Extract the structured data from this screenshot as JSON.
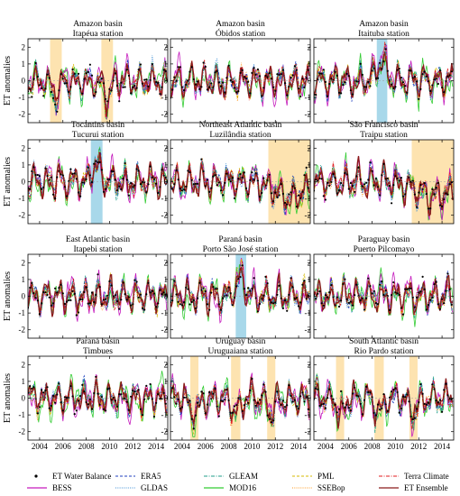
{
  "chart_data": {
    "type": "line",
    "ylabel": "ET anomalies",
    "xlim": [
      2003,
      2015
    ],
    "ylim": [
      -2.5,
      2.5
    ],
    "x_ticks": [
      2004,
      2006,
      2008,
      2010,
      2012,
      2014
    ],
    "y_ticks": [
      -2,
      -1,
      0,
      1,
      2
    ],
    "panels": [
      {
        "title1": "Amazon basin",
        "title2": "Itapéua station",
        "shade": [
          {
            "from": 2004.9,
            "to": 2005.9,
            "color": "#fde3b0"
          },
          {
            "from": 2009.3,
            "to": 2010.3,
            "color": "#fde3b0"
          }
        ]
      },
      {
        "title1": "Amazon basin",
        "title2": "Óbidos station",
        "shade": []
      },
      {
        "title1": "Amazon basin",
        "title2": "Itaituba station",
        "shade": [
          {
            "from": 2008.4,
            "to": 2009.3,
            "color": "#a8d8ea"
          }
        ]
      },
      {
        "title1": "Tocantins basin",
        "title2": "Tucurui station",
        "shade": [
          {
            "from": 2008.4,
            "to": 2009.4,
            "color": "#a8d8ea"
          }
        ]
      },
      {
        "title1": "Northeast Atlantic basin",
        "title2": "Luzilândia station",
        "shade": [
          {
            "from": 2011.4,
            "to": 2015.0,
            "color": "#fde3b0"
          }
        ]
      },
      {
        "title1": "São Francisco basin",
        "title2": "Traipu station",
        "shade": [
          {
            "from": 2011.4,
            "to": 2015.0,
            "color": "#fde3b0"
          }
        ]
      },
      {
        "title1": "East Atlantic basin",
        "title2": "Itapebi station",
        "shade": []
      },
      {
        "title1": "Paraná basin",
        "title2": "Porto São José station",
        "shade": [
          {
            "from": 2008.6,
            "to": 2009.5,
            "color": "#a8d8ea"
          }
        ]
      },
      {
        "title1": "Paraguay basin",
        "title2": "Puerto Pilcomayo",
        "shade": []
      },
      {
        "title1": "Paraná basin",
        "title2": "Timbues",
        "shade": []
      },
      {
        "title1": "Uruguay basin",
        "title2": "Uruguaiana station",
        "shade": [
          {
            "from": 2004.7,
            "to": 2005.4,
            "color": "#fde3b0"
          },
          {
            "from": 2008.2,
            "to": 2009.0,
            "color": "#fde3b0"
          },
          {
            "from": 2011.3,
            "to": 2012.0,
            "color": "#fde3b0"
          }
        ]
      },
      {
        "title1": "South Atlantic basin",
        "title2": "Rio Pardo station",
        "shade": [
          {
            "from": 2004.9,
            "to": 2005.6,
            "color": "#fde3b0"
          },
          {
            "from": 2008.2,
            "to": 2009.0,
            "color": "#fde3b0"
          },
          {
            "from": 2011.2,
            "to": 2011.9,
            "color": "#fde3b0"
          }
        ]
      }
    ],
    "series": [
      {
        "name": "ET Water Balance",
        "color": "#000000",
        "style": "dots"
      },
      {
        "name": "ERA5",
        "color": "#1f3fbf",
        "style": "dash"
      },
      {
        "name": "GLEAM",
        "color": "#1f9e89",
        "style": "dashdot"
      },
      {
        "name": "PML",
        "color": "#d4b800",
        "style": "dash"
      },
      {
        "name": "Terra Climate",
        "color": "#e31a1c",
        "style": "dashdot"
      },
      {
        "name": "BESS",
        "color": "#c51bbd",
        "style": "solid"
      },
      {
        "name": "GLDAS",
        "color": "#3d8fd6",
        "style": "dot"
      },
      {
        "name": "MOD16",
        "color": "#33cc33",
        "style": "solid"
      },
      {
        "name": "SSEBop",
        "color": "#ff9a1f",
        "style": "dot"
      },
      {
        "name": "ET Ensemble",
        "color": "#8b1a1a",
        "style": "solid"
      }
    ]
  }
}
